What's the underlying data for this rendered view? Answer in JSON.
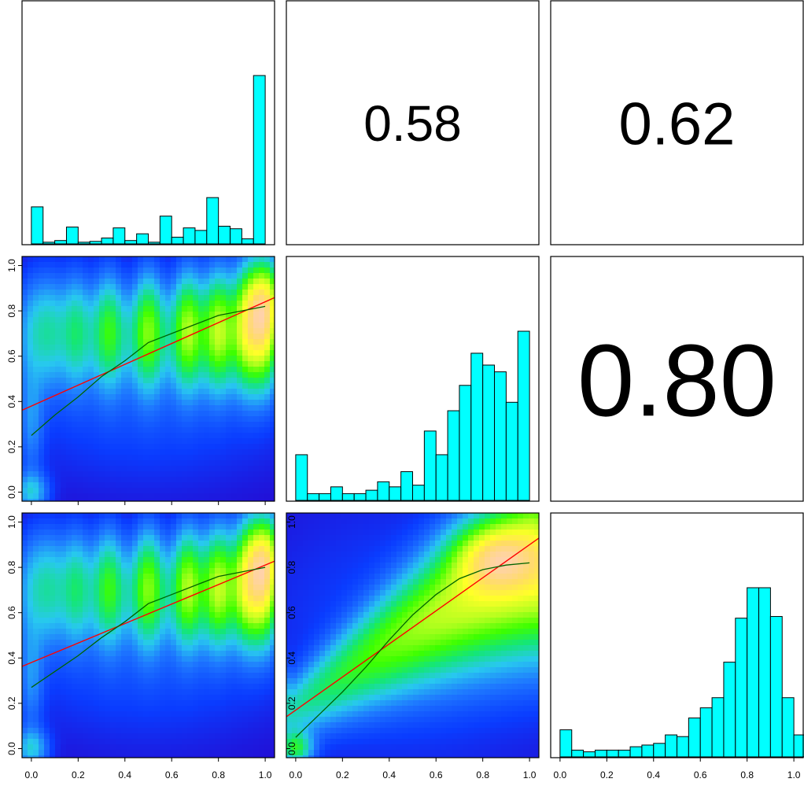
{
  "colors": {
    "histogram_fill": "#00ffff",
    "histogram_stroke": "#000000",
    "linear_fit": "#ff0000",
    "smooth_fit": "#006400",
    "density_ramp": [
      "#2a00c8",
      "#0a3cff",
      "#1e78ff",
      "#28c8f0",
      "#14e678",
      "#3cff00",
      "#b4ff1e",
      "#ffff28",
      "#ffdc64",
      "#ffd2aa"
    ]
  },
  "chart_data": {
    "type": "pairs",
    "variables": 3,
    "axes": {
      "ticks": [
        0.0,
        0.2,
        0.4,
        0.6,
        0.8,
        1.0
      ],
      "tick_labels": [
        "0.0",
        "0.2",
        "0.4",
        "0.6",
        "0.8",
        "1.0"
      ],
      "xlim": [
        -0.04,
        1.04
      ],
      "ylim": [
        -0.04,
        1.04
      ]
    },
    "correlations": [
      {
        "row": 1,
        "col": 2,
        "label": "0.58",
        "value": 0.58
      },
      {
        "row": 1,
        "col": 3,
        "label": "0.62",
        "value": 0.62
      },
      {
        "row": 2,
        "col": 3,
        "label": "0.80",
        "value": 0.8
      }
    ],
    "histograms": [
      {
        "variable": 1,
        "type": "bar",
        "bin_edges": [
          0.0,
          0.05,
          0.1,
          0.15,
          0.2,
          0.25,
          0.3,
          0.35,
          0.4,
          0.45,
          0.5,
          0.55,
          0.6,
          0.65,
          0.7,
          0.75,
          0.8,
          0.85,
          0.9,
          0.95,
          1.0
        ],
        "relative_counts": [
          0.22,
          0.01,
          0.02,
          0.1,
          0.01,
          0.015,
          0.035,
          0.095,
          0.02,
          0.06,
          0.01,
          0.165,
          0.04,
          0.095,
          0.08,
          0.275,
          0.105,
          0.09,
          0.03,
          1.0
        ]
      },
      {
        "variable": 2,
        "type": "bar",
        "bin_edges": [
          0.0,
          0.05,
          0.1,
          0.15,
          0.2,
          0.25,
          0.3,
          0.35,
          0.4,
          0.45,
          0.5,
          0.55,
          0.6,
          0.65,
          0.7,
          0.75,
          0.8,
          0.85,
          0.9,
          0.95,
          1.0
        ],
        "relative_counts": [
          0.27,
          0.04,
          0.04,
          0.08,
          0.04,
          0.04,
          0.06,
          0.11,
          0.08,
          0.17,
          0.09,
          0.41,
          0.27,
          0.53,
          0.68,
          0.87,
          0.8,
          0.76,
          0.58,
          1.0
        ]
      },
      {
        "variable": 3,
        "type": "bar",
        "bin_edges": [
          0.0,
          0.05,
          0.1,
          0.15,
          0.2,
          0.25,
          0.3,
          0.35,
          0.4,
          0.45,
          0.5,
          0.55,
          0.6,
          0.65,
          0.7,
          0.75,
          0.8,
          0.85,
          0.9,
          0.95,
          1.0
        ],
        "relative_counts": [
          0.16,
          0.04,
          0.03,
          0.04,
          0.04,
          0.04,
          0.06,
          0.07,
          0.08,
          0.13,
          0.12,
          0.23,
          0.29,
          0.35,
          0.56,
          0.82,
          1.0,
          1.0,
          0.83,
          0.35,
          0.13
        ]
      }
    ],
    "scatter_panels": [
      {
        "row": 2,
        "col": 1,
        "type": "smoothed-scatter",
        "linear_fit": {
          "intercept": 0.38,
          "slope": 0.46
        },
        "smooth_fit": [
          [
            0.0,
            0.25
          ],
          [
            0.1,
            0.34
          ],
          [
            0.2,
            0.42
          ],
          [
            0.3,
            0.51
          ],
          [
            0.4,
            0.58
          ],
          [
            0.5,
            0.66
          ],
          [
            0.6,
            0.7
          ],
          [
            0.7,
            0.74
          ],
          [
            0.8,
            0.78
          ],
          [
            0.9,
            0.8
          ],
          [
            1.0,
            0.82
          ]
        ],
        "density_mode": {
          "x": 1.0,
          "y": 0.85
        }
      },
      {
        "row": 3,
        "col": 1,
        "type": "smoothed-scatter",
        "linear_fit": {
          "intercept": 0.38,
          "slope": 0.43
        },
        "smooth_fit": [
          [
            0.0,
            0.27
          ],
          [
            0.1,
            0.34
          ],
          [
            0.2,
            0.41
          ],
          [
            0.3,
            0.49
          ],
          [
            0.4,
            0.56
          ],
          [
            0.5,
            0.64
          ],
          [
            0.6,
            0.68
          ],
          [
            0.7,
            0.72
          ],
          [
            0.8,
            0.76
          ],
          [
            0.9,
            0.78
          ],
          [
            1.0,
            0.8
          ]
        ],
        "density_mode": {
          "x": 1.0,
          "y": 0.85
        }
      },
      {
        "row": 3,
        "col": 2,
        "type": "smoothed-scatter",
        "linear_fit": {
          "intercept": 0.17,
          "slope": 0.73
        },
        "smooth_fit": [
          [
            0.0,
            0.05
          ],
          [
            0.1,
            0.15
          ],
          [
            0.2,
            0.25
          ],
          [
            0.3,
            0.36
          ],
          [
            0.4,
            0.48
          ],
          [
            0.5,
            0.59
          ],
          [
            0.6,
            0.68
          ],
          [
            0.7,
            0.75
          ],
          [
            0.8,
            0.79
          ],
          [
            0.9,
            0.81
          ],
          [
            1.0,
            0.82
          ]
        ],
        "density_mode": {
          "x": 0.85,
          "y": 0.85
        }
      }
    ]
  }
}
